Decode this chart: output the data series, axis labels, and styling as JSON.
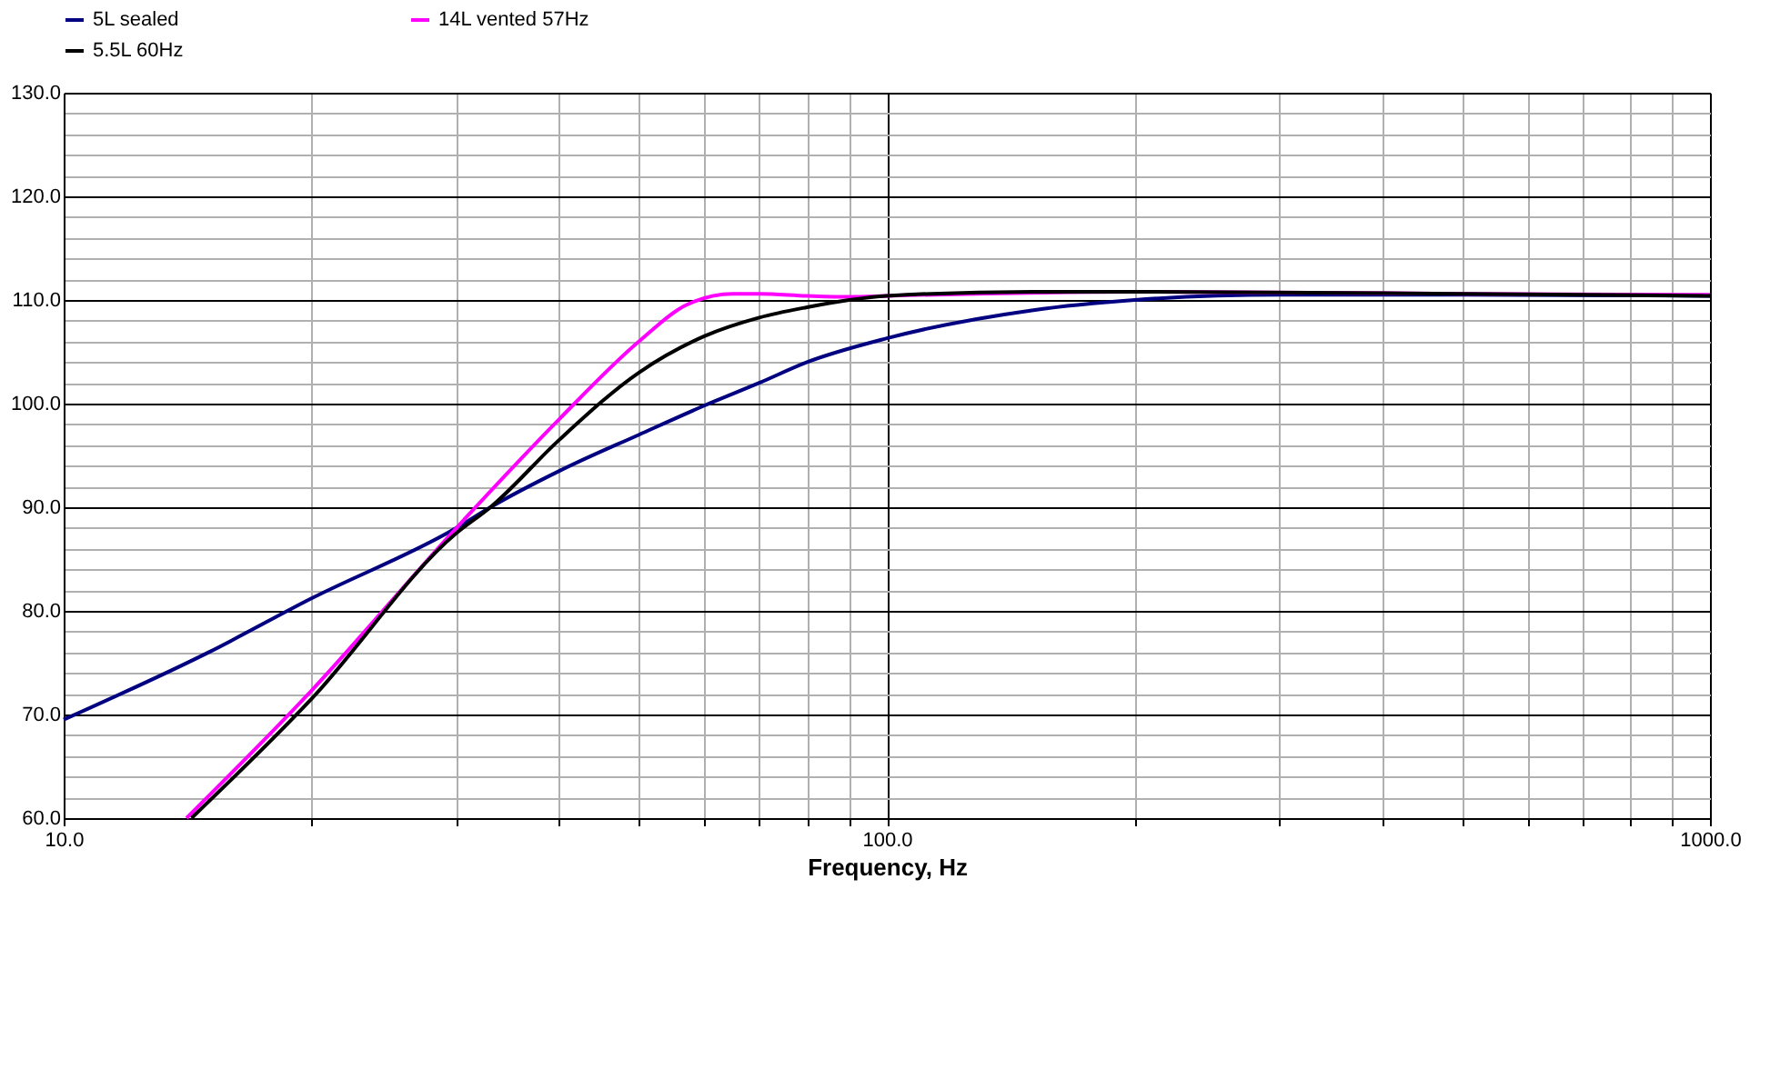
{
  "chart_data": {
    "type": "line",
    "xlabel": "Frequency,  Hz",
    "log": "x",
    "grid": true,
    "legend": "top",
    "line_style": "solid",
    "marker": "none",
    "xlim": [
      10,
      1000
    ],
    "ylim": [
      60,
      130
    ],
    "xticks": [
      {
        "value": 10,
        "label": "10.0"
      },
      {
        "value": 20,
        "label": null
      },
      {
        "value": 30,
        "label": null
      },
      {
        "value": 40,
        "label": null
      },
      {
        "value": 50,
        "label": null
      },
      {
        "value": 60,
        "label": null
      },
      {
        "value": 70,
        "label": null
      },
      {
        "value": 80,
        "label": null
      },
      {
        "value": 90,
        "label": null
      },
      {
        "value": 100,
        "label": "100.0"
      },
      {
        "value": 200,
        "label": null
      },
      {
        "value": 300,
        "label": null
      },
      {
        "value": 400,
        "label": null
      },
      {
        "value": 500,
        "label": null
      },
      {
        "value": 600,
        "label": null
      },
      {
        "value": 700,
        "label": null
      },
      {
        "value": 800,
        "label": null
      },
      {
        "value": 900,
        "label": null
      },
      {
        "value": 1000,
        "label": "1000.0"
      }
    ],
    "yticks": [
      {
        "value": 60,
        "label": "60.0"
      },
      {
        "value": 62,
        "label": null
      },
      {
        "value": 64,
        "label": null
      },
      {
        "value": 66,
        "label": null
      },
      {
        "value": 68,
        "label": null
      },
      {
        "value": 70,
        "label": "70.0"
      },
      {
        "value": 72,
        "label": null
      },
      {
        "value": 74,
        "label": null
      },
      {
        "value": 76,
        "label": null
      },
      {
        "value": 78,
        "label": null
      },
      {
        "value": 80,
        "label": "80.0"
      },
      {
        "value": 82,
        "label": null
      },
      {
        "value": 84,
        "label": null
      },
      {
        "value": 86,
        "label": null
      },
      {
        "value": 88,
        "label": null
      },
      {
        "value": 90,
        "label": "90.0"
      },
      {
        "value": 92,
        "label": null
      },
      {
        "value": 94,
        "label": null
      },
      {
        "value": 96,
        "label": null
      },
      {
        "value": 98,
        "label": null
      },
      {
        "value": 100,
        "label": "100.0"
      },
      {
        "value": 102,
        "label": null
      },
      {
        "value": 104,
        "label": null
      },
      {
        "value": 106,
        "label": null
      },
      {
        "value": 108,
        "label": null
      },
      {
        "value": 110,
        "label": "110.0"
      },
      {
        "value": 112,
        "label": null
      },
      {
        "value": 114,
        "label": null
      },
      {
        "value": 116,
        "label": null
      },
      {
        "value": 118,
        "label": null
      },
      {
        "value": 120,
        "label": "120.0"
      },
      {
        "value": 122,
        "label": null
      },
      {
        "value": 124,
        "label": null
      },
      {
        "value": 126,
        "label": null
      },
      {
        "value": 128,
        "label": null
      },
      {
        "value": 130,
        "label": "130.0"
      }
    ],
    "series": [
      {
        "name": "5L sealed",
        "color": "#000080",
        "x": [
          10,
          15,
          20,
          30,
          33,
          40,
          50,
          60,
          70,
          80,
          100,
          150,
          200,
          300,
          500,
          1000
        ],
        "values": [
          69.5,
          76,
          81.2,
          88,
          90,
          93.5,
          97,
          99.8,
          102,
          104,
          106.3,
          109,
          110,
          110.5,
          110.5,
          110.4
        ]
      },
      {
        "name": "14L vented 57Hz",
        "color": "#ff00ff",
        "x": [
          14.1,
          20,
          30,
          40,
          50,
          57,
          65,
          70,
          80,
          90,
          100,
          200,
          500,
          1000
        ],
        "values": [
          60,
          72.3,
          88,
          98.5,
          106,
          109.5,
          110.6,
          110.6,
          110.4,
          110.3,
          110.4,
          110.8,
          110.6,
          110.5
        ]
      },
      {
        "name": "5.5L 60Hz",
        "color": "#000000",
        "x": [
          14.3,
          20,
          30,
          33,
          40,
          50,
          60,
          70,
          80,
          90,
          100,
          150,
          200,
          500,
          1000
        ],
        "values": [
          60,
          71.5,
          87.5,
          90,
          96.5,
          103,
          106.5,
          108.3,
          109.3,
          110,
          110.4,
          110.8,
          110.8,
          110.6,
          110.4
        ]
      }
    ]
  }
}
